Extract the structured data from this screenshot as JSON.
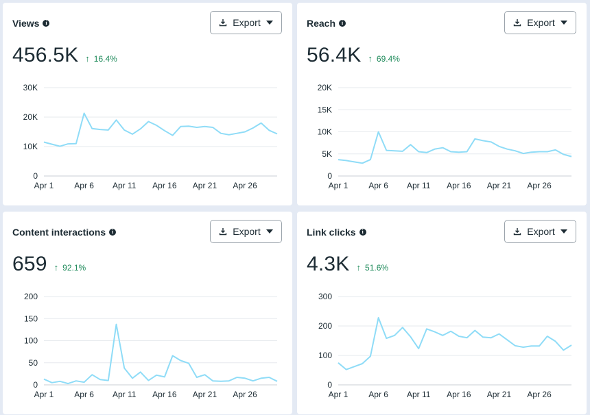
{
  "export_label": "Export",
  "line_color": "#8fdcf7",
  "change_color": "#1e8a5a",
  "cards": [
    {
      "title": "Views",
      "value": "456.5K",
      "change": "16.4%",
      "chart_data": {
        "type": "line",
        "x_ticks": [
          "Apr 1",
          "Apr 6",
          "Apr 11",
          "Apr 16",
          "Apr 21",
          "Apr 26"
        ],
        "y_ticks": [
          "0",
          "10K",
          "20K",
          "30K"
        ],
        "ylim": [
          0,
          30000
        ],
        "series": [
          {
            "name": "Views",
            "values": [
              11500,
              10800,
              10100,
              10900,
              11000,
              21300,
              16100,
              15800,
              15600,
              19000,
              15600,
              14200,
              16000,
              18500,
              17200,
              15400,
              13800,
              16800,
              16900,
              16500,
              16800,
              16500,
              14500,
              14000,
              14500,
              15000,
              16300,
              18000,
              15500,
              14300
            ]
          }
        ]
      }
    },
    {
      "title": "Reach",
      "value": "56.4K",
      "change": "69.4%",
      "chart_data": {
        "type": "line",
        "x_ticks": [
          "Apr 1",
          "Apr 6",
          "Apr 11",
          "Apr 16",
          "Apr 21",
          "Apr 26"
        ],
        "y_ticks": [
          "0",
          "5K",
          "10K",
          "15K",
          "20K"
        ],
        "ylim": [
          0,
          20000
        ],
        "series": [
          {
            "name": "Reach",
            "values": [
              3700,
              3500,
              3200,
              2900,
              3700,
              10000,
              5800,
              5700,
              5600,
              7100,
              5500,
              5300,
              6100,
              6400,
              5500,
              5400,
              5500,
              8400,
              8000,
              7700,
              6700,
              6100,
              5700,
              5100,
              5400,
              5500,
              5500,
              5900,
              4900,
              4400
            ]
          }
        ]
      }
    },
    {
      "title": "Content interactions",
      "value": "659",
      "change": "92.1%",
      "chart_data": {
        "type": "line",
        "x_ticks": [
          "Apr 1",
          "Apr 6",
          "Apr 11",
          "Apr 16",
          "Apr 21",
          "Apr 26"
        ],
        "y_ticks": [
          "0",
          "50",
          "100",
          "150",
          "200"
        ],
        "ylim": [
          0,
          200
        ],
        "series": [
          {
            "name": "Content interactions",
            "values": [
              13,
              5,
              8,
              3,
              9,
              6,
              23,
              12,
              10,
              137,
              38,
              15,
              29,
              10,
              22,
              18,
              66,
              55,
              49,
              17,
              23,
              9,
              8,
              9,
              17,
              15,
              9,
              15,
              17,
              8
            ]
          }
        ]
      }
    },
    {
      "title": "Link clicks",
      "value": "4.3K",
      "change": "51.6%",
      "chart_data": {
        "type": "line",
        "x_ticks": [
          "Apr 1",
          "Apr 6",
          "Apr 11",
          "Apr 16",
          "Apr 21",
          "Apr 26"
        ],
        "y_ticks": [
          "0",
          "100",
          "200",
          "300"
        ],
        "ylim": [
          0,
          300
        ],
        "series": [
          {
            "name": "Link clicks",
            "values": [
              75,
              52,
              62,
              72,
              97,
              228,
              158,
              168,
              195,
              163,
              123,
              190,
              180,
              168,
              182,
              165,
              160,
              185,
              162,
              160,
              173,
              153,
              133,
              128,
              132,
              132,
              165,
              148,
              118,
              135
            ]
          }
        ]
      }
    }
  ]
}
